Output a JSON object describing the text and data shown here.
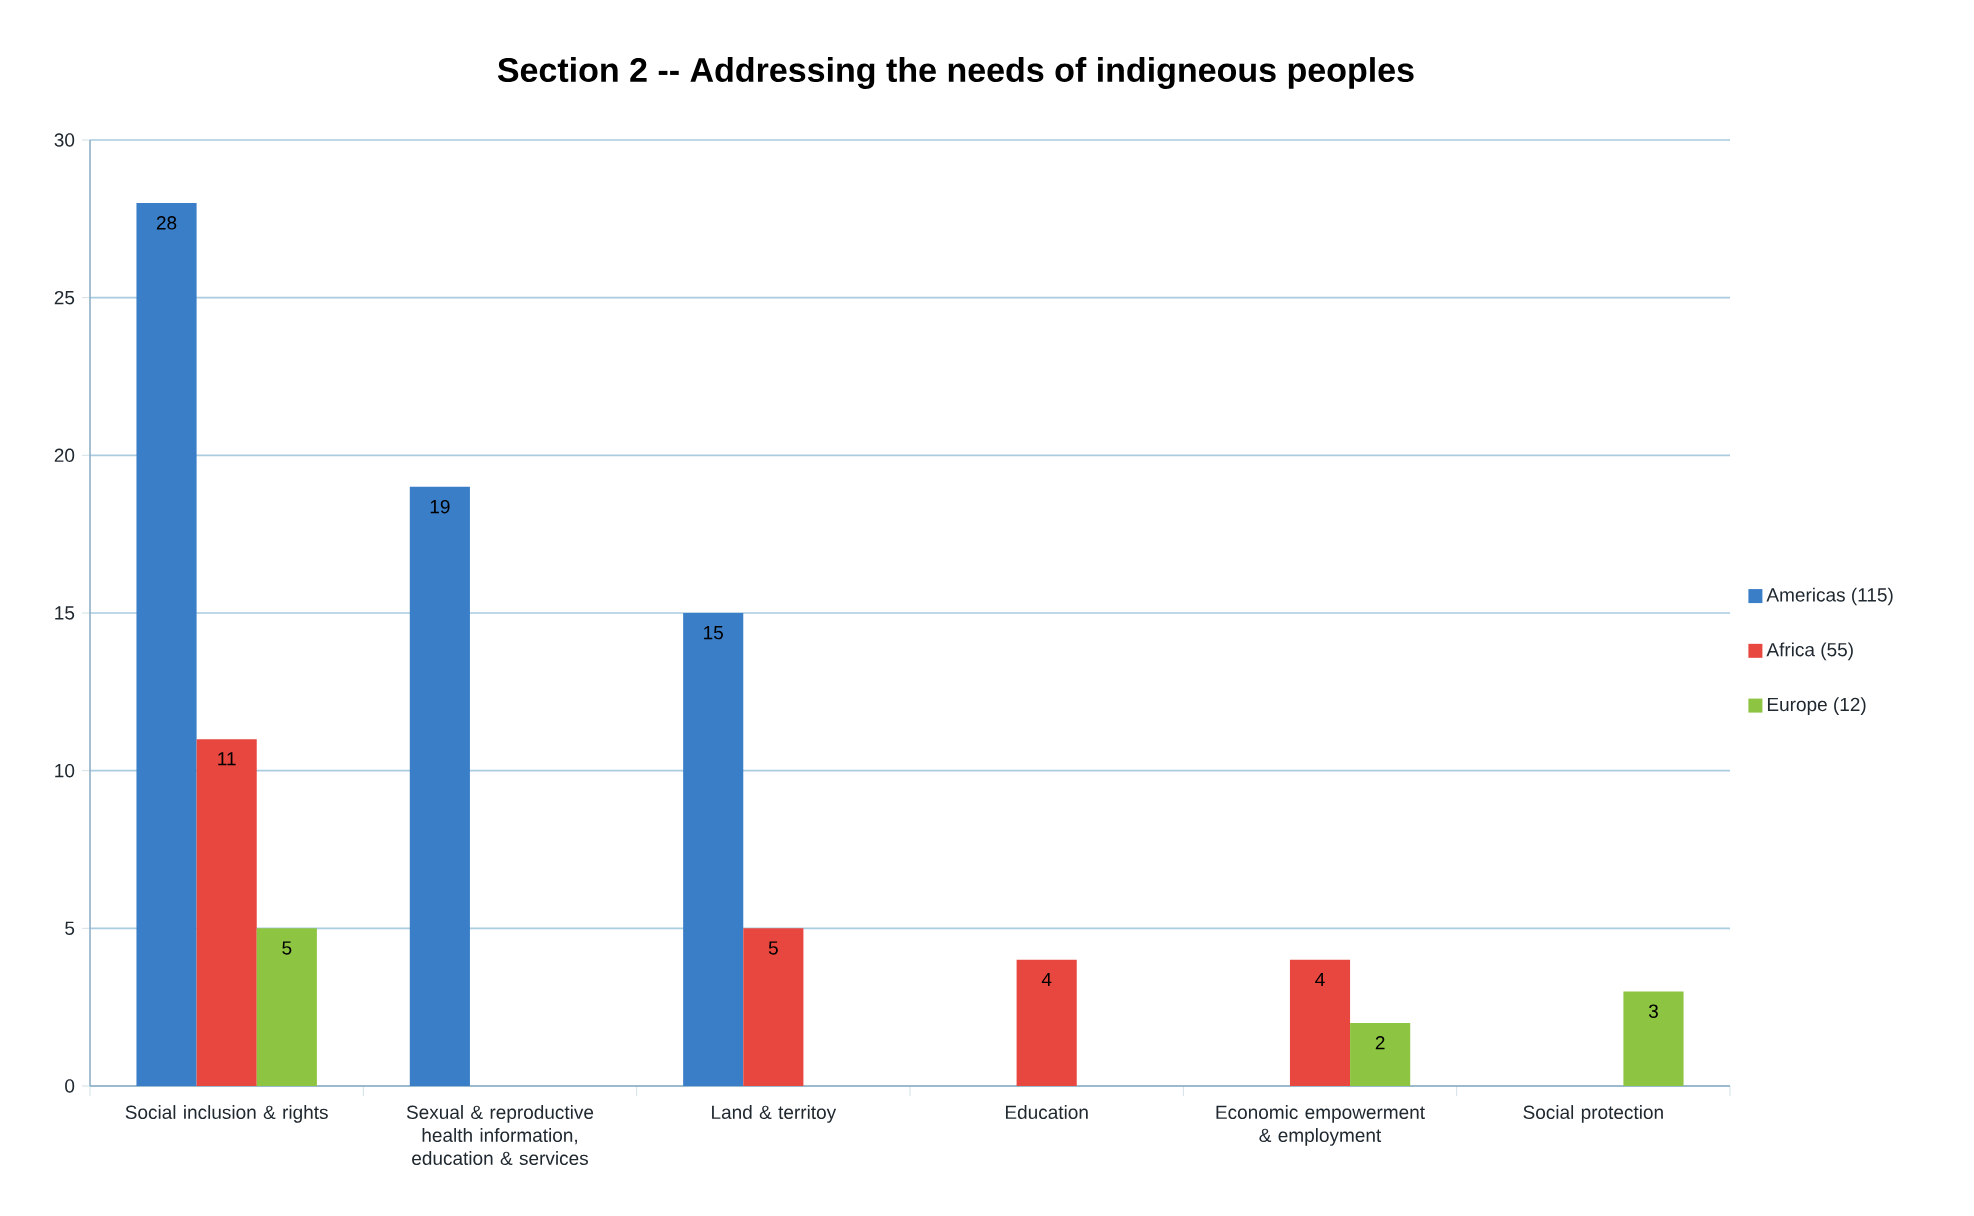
{
  "chart_data": {
    "type": "bar",
    "title": "Section 2 -- Addressing the needs of indigneous peoples",
    "categories": [
      "Social inclusion & rights",
      "Sexual & reproductive health information, education & services",
      "Land & territoy",
      "Education",
      "Economic empowerment & employment",
      "Social protection"
    ],
    "series": [
      {
        "name": "Americas (115)",
        "color": "#3a7ec8",
        "values": [
          28,
          19,
          15,
          null,
          null,
          null
        ]
      },
      {
        "name": "Africa (55)",
        "color": "#e8473f",
        "values": [
          11,
          null,
          5,
          4,
          4,
          null
        ]
      },
      {
        "name": "Europe (12)",
        "color": "#8dc441",
        "values": [
          5,
          null,
          null,
          null,
          2,
          3
        ]
      }
    ],
    "ylim": [
      0,
      30
    ],
    "yticks": [
      0,
      5,
      10,
      15,
      20,
      25,
      30
    ],
    "grid": "y",
    "legend": "right",
    "data_labels": true
  }
}
